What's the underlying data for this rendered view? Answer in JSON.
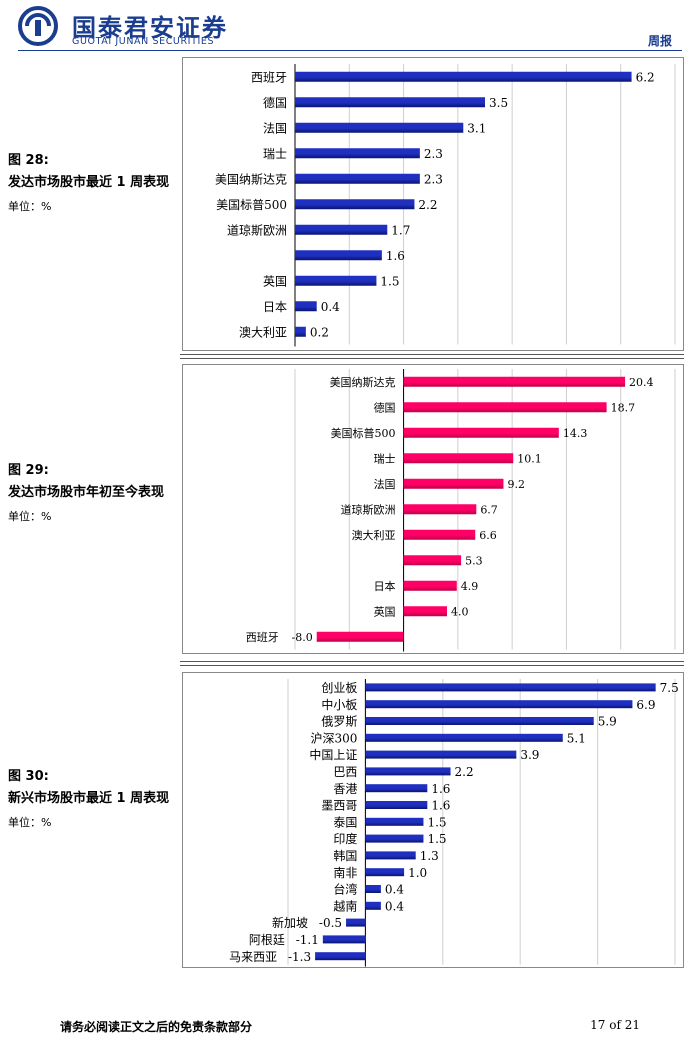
{
  "header": {
    "logo_cn": "国泰君安证券",
    "logo_en": "GUOTAI JUNAN SECURITIES",
    "report_type": "周报",
    "brand_color": "#1a3d8f"
  },
  "figures": [
    {
      "fig_label": "图  28:",
      "title": "发达市场股市最近 1 周表现",
      "unit": "单位：%"
    },
    {
      "fig_label": "图  29:",
      "title": "发达市场股市年初至今表现",
      "unit": "单位：%"
    },
    {
      "fig_label": "图  30:",
      "title": "新兴市场股市最近 1 周表现",
      "unit": "单位：%"
    }
  ],
  "chart_data": [
    {
      "type": "bar",
      "orientation": "horizontal",
      "categories": [
        "西班牙",
        "德国",
        "法国",
        "瑞士",
        "美国纳斯达克",
        "美国标普500",
        "道琼斯欧洲",
        "",
        "英国",
        "日本",
        "澳大利亚"
      ],
      "values": [
        6.2,
        3.5,
        3.1,
        2.3,
        2.3,
        2.2,
        1.7,
        1.6,
        1.5,
        0.4,
        0.2
      ],
      "xlim": [
        0,
        7
      ],
      "grid": true,
      "bar_color": "#1f2fbf"
    },
    {
      "type": "bar",
      "orientation": "horizontal",
      "categories": [
        "美国纳斯达克",
        "德国",
        "美国标普500",
        "瑞士",
        "法国",
        "道琼斯欧洲",
        "澳大利亚",
        "",
        "日本",
        "英国",
        "西班牙"
      ],
      "values": [
        20.4,
        18.7,
        14.3,
        10.1,
        9.2,
        6.7,
        6.6,
        5.3,
        4.9,
        4.0,
        -8.0
      ],
      "xlim": [
        -10,
        25
      ],
      "grid": true,
      "bar_color": "#ff0066"
    },
    {
      "type": "bar",
      "orientation": "horizontal",
      "categories": [
        "创业板",
        "中小板",
        "俄罗斯",
        "沪深300",
        "中国上证",
        "巴西",
        "香港",
        "墨西哥",
        "泰国",
        "印度",
        "韩国",
        "南非",
        "台湾",
        "越南",
        "新加坡",
        "阿根廷",
        "马来西亚"
      ],
      "values": [
        7.5,
        6.9,
        5.9,
        5.1,
        3.9,
        2.2,
        1.6,
        1.6,
        1.5,
        1.5,
        1.3,
        1.0,
        0.4,
        0.4,
        -0.5,
        -1.1,
        -1.3
      ],
      "xlim": [
        -2,
        8
      ],
      "grid": true,
      "bar_color": "#1f2fbf"
    }
  ],
  "footer": {
    "disclaimer": "请务必阅读正文之后的免责条款部分",
    "page": "17 of 21"
  }
}
